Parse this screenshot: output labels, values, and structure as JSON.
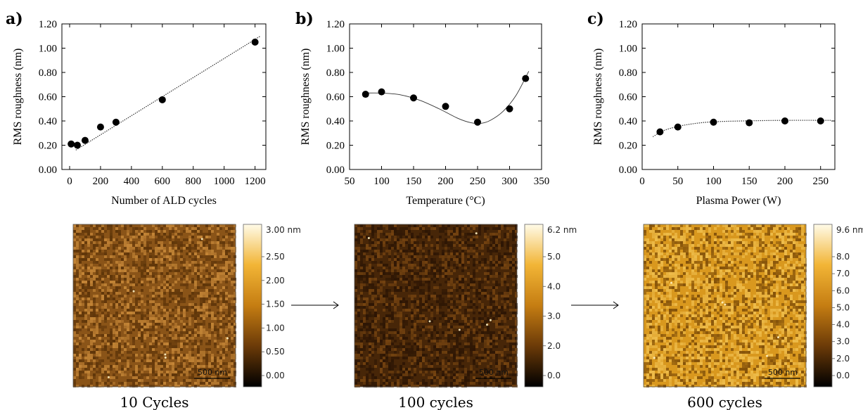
{
  "chart_data": [
    {
      "type": "scatter",
      "panel_label": "a)",
      "xlabel": "Number of ALD cycles",
      "ylabel": "RMS roughness (nm)",
      "xlim": [
        -50,
        1270
      ],
      "ylim": [
        0,
        1.2
      ],
      "xticks": [
        0,
        200,
        400,
        600,
        800,
        1000,
        1200
      ],
      "yticks": [
        0,
        0.2,
        0.4,
        0.6,
        0.8,
        1.0,
        1.2
      ],
      "xtick_labels": [
        "0",
        "200",
        "400",
        "600",
        "800",
        "1000",
        "1200"
      ],
      "ytick_labels": [
        "0.00",
        "0.20",
        "0.40",
        "0.60",
        "0.80",
        "1.00",
        "1.20"
      ],
      "points": [
        [
          10,
          0.21
        ],
        [
          50,
          0.2
        ],
        [
          100,
          0.24
        ],
        [
          200,
          0.35
        ],
        [
          300,
          0.39
        ],
        [
          600,
          0.575
        ],
        [
          1200,
          1.05
        ]
      ],
      "fit": [
        [
          40,
          0.16
        ],
        [
          1235,
          1.1
        ]
      ],
      "fit_style": "dotted"
    },
    {
      "type": "scatter",
      "panel_label": "b)",
      "xlabel": "Temperature (°C)",
      "ylabel": "RMS roughness (nm)",
      "xlim": [
        50,
        350
      ],
      "ylim": [
        0,
        1.2
      ],
      "xticks": [
        50,
        100,
        150,
        200,
        250,
        300,
        350
      ],
      "yticks": [
        0,
        0.2,
        0.4,
        0.6,
        0.8,
        1.0,
        1.2
      ],
      "xtick_labels": [
        "50",
        "100",
        "150",
        "200",
        "250",
        "300",
        "350"
      ],
      "ytick_labels": [
        "0.00",
        "0.20",
        "0.40",
        "0.60",
        "0.80",
        "1.00",
        "1.20"
      ],
      "points": [
        [
          75,
          0.62
        ],
        [
          100,
          0.64
        ],
        [
          150,
          0.59
        ],
        [
          200,
          0.52
        ],
        [
          250,
          0.39
        ],
        [
          300,
          0.5
        ],
        [
          325,
          0.75
        ]
      ],
      "fit": [
        [
          70,
          0.63
        ],
        [
          100,
          0.63
        ],
        [
          130,
          0.615
        ],
        [
          160,
          0.57
        ],
        [
          190,
          0.5
        ],
        [
          220,
          0.42
        ],
        [
          240,
          0.385
        ],
        [
          255,
          0.38
        ],
        [
          270,
          0.405
        ],
        [
          290,
          0.48
        ],
        [
          310,
          0.61
        ],
        [
          330,
          0.81
        ]
      ],
      "fit_style": "solid"
    },
    {
      "type": "scatter",
      "panel_label": "c)",
      "xlabel": "Plasma Power (W)",
      "ylabel": "RMS roughness (nm)",
      "xlim": [
        0,
        270
      ],
      "ylim": [
        0,
        1.2
      ],
      "xticks": [
        0,
        50,
        100,
        150,
        200,
        250
      ],
      "yticks": [
        0,
        0.2,
        0.4,
        0.6,
        0.8,
        1.0,
        1.2
      ],
      "xtick_labels": [
        "0",
        "50",
        "100",
        "150",
        "200",
        "250"
      ],
      "ytick_labels": [
        "0.00",
        "0.20",
        "0.40",
        "0.60",
        "0.80",
        "1.00",
        "1.20"
      ],
      "points": [
        [
          25,
          0.31
        ],
        [
          50,
          0.35
        ],
        [
          100,
          0.39
        ],
        [
          150,
          0.385
        ],
        [
          200,
          0.4
        ],
        [
          250,
          0.4
        ]
      ],
      "fit": [
        [
          15,
          0.27
        ],
        [
          30,
          0.32
        ],
        [
          50,
          0.355
        ],
        [
          75,
          0.38
        ],
        [
          100,
          0.393
        ],
        [
          140,
          0.4
        ],
        [
          200,
          0.405
        ],
        [
          265,
          0.405
        ]
      ],
      "fit_style": "dotted"
    }
  ],
  "afm_images": [
    {
      "caption": "10 Cycles",
      "scale_bar": "500 nm",
      "colorbar_max": "3.00 nm",
      "colorbar_ticks": [
        "2.50",
        "2.00",
        "1.50",
        "1.00",
        "0.50",
        "0.00"
      ],
      "tone": "#8a5418",
      "speckle": "#c98a3a",
      "dark": "#5a3208"
    },
    {
      "caption": "100 cycles",
      "scale_bar": "500 nm",
      "colorbar_max": "6.2 nm",
      "colorbar_ticks": [
        "5.0",
        "4.0",
        "3.0",
        "2.0",
        "0.0"
      ],
      "tone": "#472608",
      "speckle": "#7a4712",
      "dark": "#2a1404"
    },
    {
      "caption": "600 cycles",
      "scale_bar": "500 nm",
      "colorbar_max": "9.6 nm",
      "colorbar_ticks": [
        "8.0",
        "7.0",
        "6.0",
        "5.0",
        "4.0",
        "3.0",
        "2.0",
        "0.0"
      ],
      "tone": "#d9981e",
      "speckle": "#f0c050",
      "dark": "#7a4a08"
    }
  ],
  "colors": {
    "marker": "#000000",
    "axis": "#000000",
    "fit_line": "#333333"
  }
}
